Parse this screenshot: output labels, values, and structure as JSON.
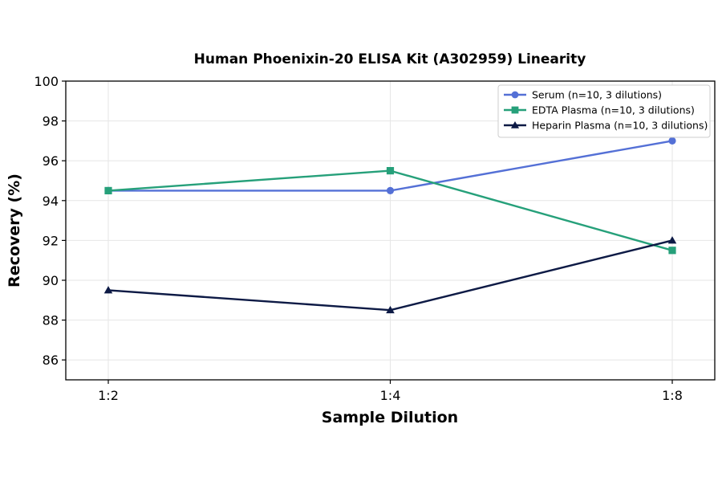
{
  "chart_data": {
    "type": "line",
    "title": "Human Phoenixin-20 ELISA Kit (A302959) Linearity",
    "xlabel": "Sample Dilution",
    "ylabel": "Recovery (%)",
    "categories": [
      "1:2",
      "1:4",
      "1:8"
    ],
    "ylim": [
      85,
      100
    ],
    "yticks": [
      86,
      88,
      90,
      92,
      94,
      96,
      98,
      100
    ],
    "grid": true,
    "legend_position": "top-right",
    "series": [
      {
        "name": "Serum (n=10, 3 dilutions)",
        "values": [
          94.5,
          94.5,
          97.0
        ],
        "color": "#5470d6",
        "marker": "circle"
      },
      {
        "name": "EDTA Plasma (n=10, 3 dilutions)",
        "values": [
          94.5,
          95.5,
          91.5
        ],
        "color": "#26a07a",
        "marker": "square"
      },
      {
        "name": "Heparin Plasma (n=10, 3 dilutions)",
        "values": [
          89.5,
          88.5,
          92.0
        ],
        "color": "#0d1a45",
        "marker": "triangle"
      }
    ]
  }
}
